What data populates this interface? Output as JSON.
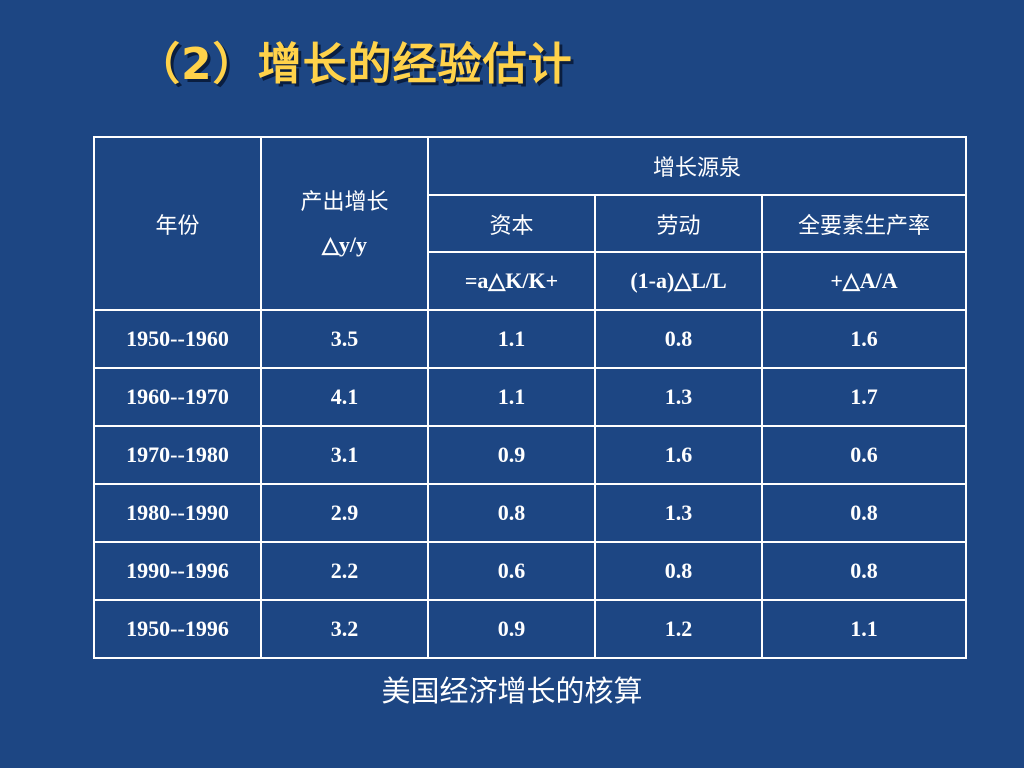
{
  "title": "（2）增长的经验估计",
  "table": {
    "col_year": "年份",
    "col_output_line1": "产出增长",
    "col_output_line2": "△y/y",
    "sources_header": "增长源泉",
    "sources": [
      {
        "name": "资本",
        "formula": "=a△K/K+"
      },
      {
        "name": "劳动",
        "formula": "(1-a)△L/L"
      },
      {
        "name": "全要素生产率",
        "formula": "+△A/A"
      }
    ],
    "rows": [
      {
        "period": "1950--1960",
        "output": "3.5",
        "capital": "1.1",
        "labor": "0.8",
        "tfp": "1.6"
      },
      {
        "period": "1960--1970",
        "output": "4.1",
        "capital": "1.1",
        "labor": "1.3",
        "tfp": "1.7"
      },
      {
        "period": "1970--1980",
        "output": "3.1",
        "capital": "0.9",
        "labor": "1.6",
        "tfp": "0.6"
      },
      {
        "period": "1980--1990",
        "output": "2.9",
        "capital": "0.8",
        "labor": "1.3",
        "tfp": "0.8"
      },
      {
        "period": "1990--1996",
        "output": "2.2",
        "capital": "0.6",
        "labor": "0.8",
        "tfp": "0.8"
      },
      {
        "period": "1950--1996",
        "output": "3.2",
        "capital": "0.9",
        "labor": "1.2",
        "tfp": "1.1"
      }
    ]
  },
  "caption": "美国经济增长的核算",
  "colors": {
    "background": "#1d4683",
    "title": "#ffd24a",
    "text": "#ffffff",
    "border": "#ffffff"
  }
}
